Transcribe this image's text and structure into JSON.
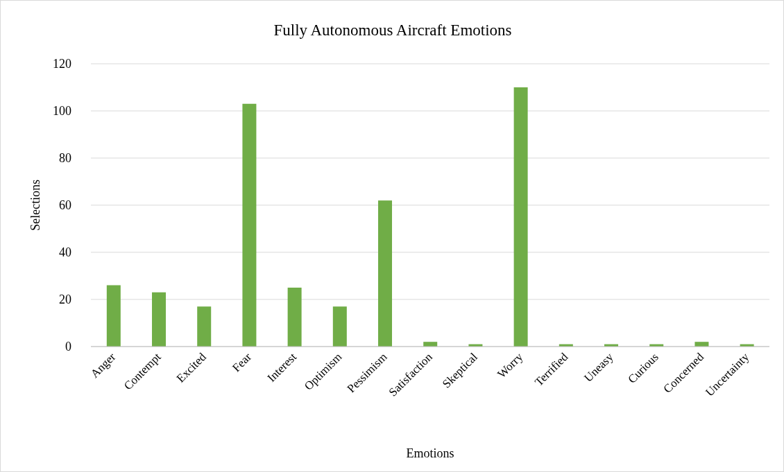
{
  "chart_data": {
    "type": "bar",
    "title": "Fully Autonomous Aircraft Emotions",
    "xlabel": "Emotions",
    "ylabel": "Selections",
    "categories": [
      "Anger",
      "Contempt",
      "Excited",
      "Fear",
      "Interest",
      "Optimism",
      "Pessimism",
      "Satisfaction",
      "Skeptical",
      "Worry",
      "Terrified",
      "Uneasy",
      "Curious",
      "Concerned",
      "Uncertainty"
    ],
    "values": [
      26,
      23,
      17,
      103,
      25,
      17,
      62,
      2,
      1,
      110,
      1,
      1,
      1,
      2,
      1
    ],
    "color": "#70ad47",
    "ylim": [
      0,
      120
    ],
    "yticks": [
      0,
      20,
      40,
      60,
      80,
      100,
      120
    ],
    "grid": "y",
    "legend": false
  }
}
